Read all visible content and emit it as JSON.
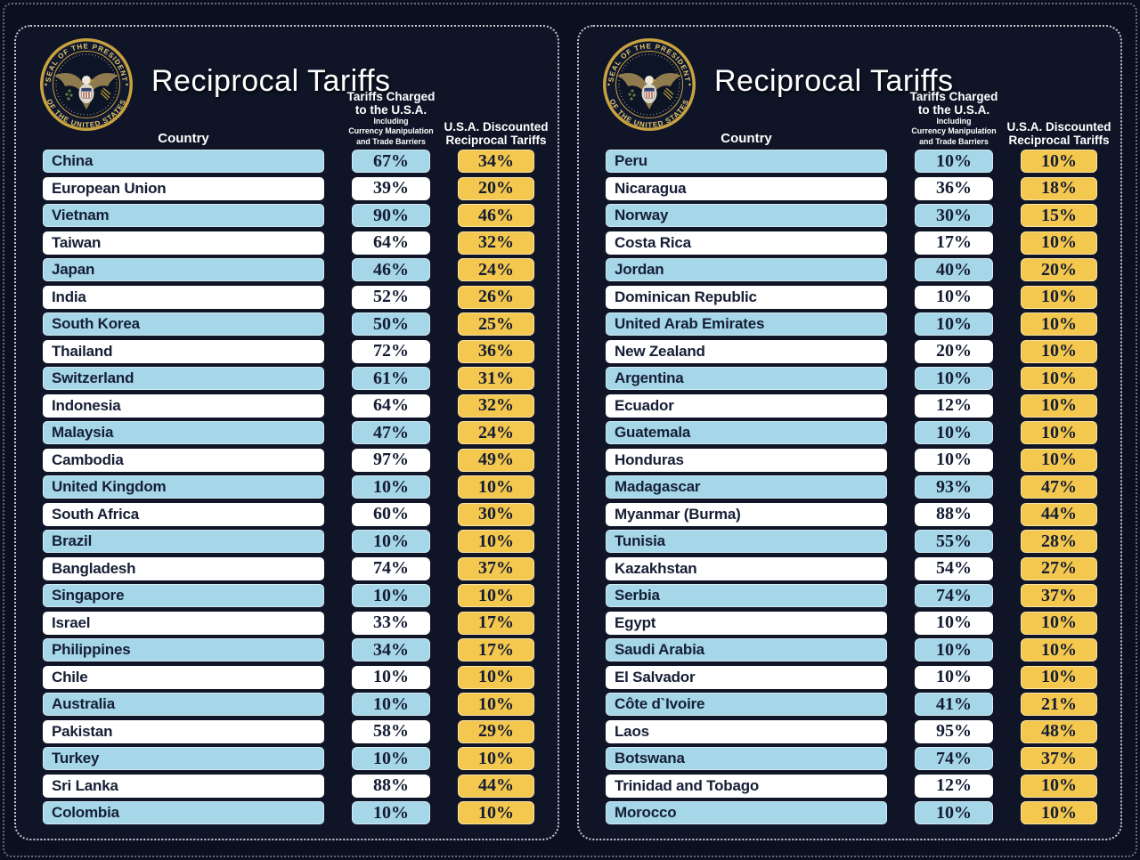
{
  "colors": {
    "background": "#0b101f",
    "panel_background": "#0f1527",
    "row_blue": "#a6d7e8",
    "row_white": "#ffffff",
    "discount_gold": "#f4c84e",
    "cell_text": "#141c33",
    "header_text": "#ffffff",
    "seal_gold": "#c9a23f"
  },
  "seal": {
    "top_text": "SEAL OF THE PRESIDENT",
    "bottom_text": "OF THE UNITED STATES"
  },
  "panels": [
    {
      "title": "Reciprocal Tariffs",
      "columns": {
        "country": "Country",
        "charged_line1": "Tariffs Charged",
        "charged_line2": "to the U.S.A.",
        "charged_sub1": "Including",
        "charged_sub2": "Currency Manipulation",
        "charged_sub3": "and Trade Barriers",
        "discounted_line1": "U.S.A. Discounted",
        "discounted_line2": "Reciprocal Tariffs"
      },
      "rows": [
        {
          "country": "China",
          "charged": "67%",
          "discounted": "34%"
        },
        {
          "country": "European Union",
          "charged": "39%",
          "discounted": "20%"
        },
        {
          "country": "Vietnam",
          "charged": "90%",
          "discounted": "46%"
        },
        {
          "country": "Taiwan",
          "charged": "64%",
          "discounted": "32%"
        },
        {
          "country": "Japan",
          "charged": "46%",
          "discounted": "24%"
        },
        {
          "country": "India",
          "charged": "52%",
          "discounted": "26%"
        },
        {
          "country": "South Korea",
          "charged": "50%",
          "discounted": "25%"
        },
        {
          "country": "Thailand",
          "charged": "72%",
          "discounted": "36%"
        },
        {
          "country": "Switzerland",
          "charged": "61%",
          "discounted": "31%"
        },
        {
          "country": "Indonesia",
          "charged": "64%",
          "discounted": "32%"
        },
        {
          "country": "Malaysia",
          "charged": "47%",
          "discounted": "24%"
        },
        {
          "country": "Cambodia",
          "charged": "97%",
          "discounted": "49%"
        },
        {
          "country": "United Kingdom",
          "charged": "10%",
          "discounted": "10%"
        },
        {
          "country": "South Africa",
          "charged": "60%",
          "discounted": "30%"
        },
        {
          "country": "Brazil",
          "charged": "10%",
          "discounted": "10%"
        },
        {
          "country": "Bangladesh",
          "charged": "74%",
          "discounted": "37%"
        },
        {
          "country": "Singapore",
          "charged": "10%",
          "discounted": "10%"
        },
        {
          "country": "Israel",
          "charged": "33%",
          "discounted": "17%"
        },
        {
          "country": "Philippines",
          "charged": "34%",
          "discounted": "17%"
        },
        {
          "country": "Chile",
          "charged": "10%",
          "discounted": "10%"
        },
        {
          "country": "Australia",
          "charged": "10%",
          "discounted": "10%"
        },
        {
          "country": "Pakistan",
          "charged": "58%",
          "discounted": "29%"
        },
        {
          "country": "Turkey",
          "charged": "10%",
          "discounted": "10%"
        },
        {
          "country": "Sri Lanka",
          "charged": "88%",
          "discounted": "44%"
        },
        {
          "country": "Colombia",
          "charged": "10%",
          "discounted": "10%"
        }
      ]
    },
    {
      "title": "Reciprocal Tariffs",
      "columns": {
        "country": "Country",
        "charged_line1": "Tariffs Charged",
        "charged_line2": "to the U.S.A.",
        "charged_sub1": "Including",
        "charged_sub2": "Currency Manipulation",
        "charged_sub3": "and Trade Barriers",
        "discounted_line1": "U.S.A. Discounted",
        "discounted_line2": "Reciprocal Tariffs"
      },
      "rows": [
        {
          "country": "Peru",
          "charged": "10%",
          "discounted": "10%"
        },
        {
          "country": "Nicaragua",
          "charged": "36%",
          "discounted": "18%"
        },
        {
          "country": "Norway",
          "charged": "30%",
          "discounted": "15%"
        },
        {
          "country": "Costa Rica",
          "charged": "17%",
          "discounted": "10%"
        },
        {
          "country": "Jordan",
          "charged": "40%",
          "discounted": "20%"
        },
        {
          "country": "Dominican Republic",
          "charged": "10%",
          "discounted": "10%"
        },
        {
          "country": "United Arab Emirates",
          "charged": "10%",
          "discounted": "10%"
        },
        {
          "country": "New Zealand",
          "charged": "20%",
          "discounted": "10%"
        },
        {
          "country": "Argentina",
          "charged": "10%",
          "discounted": "10%"
        },
        {
          "country": "Ecuador",
          "charged": "12%",
          "discounted": "10%"
        },
        {
          "country": "Guatemala",
          "charged": "10%",
          "discounted": "10%"
        },
        {
          "country": "Honduras",
          "charged": "10%",
          "discounted": "10%"
        },
        {
          "country": "Madagascar",
          "charged": "93%",
          "discounted": "47%"
        },
        {
          "country": "Myanmar (Burma)",
          "charged": "88%",
          "discounted": "44%"
        },
        {
          "country": "Tunisia",
          "charged": "55%",
          "discounted": "28%"
        },
        {
          "country": "Kazakhstan",
          "charged": "54%",
          "discounted": "27%"
        },
        {
          "country": "Serbia",
          "charged": "74%",
          "discounted": "37%"
        },
        {
          "country": "Egypt",
          "charged": "10%",
          "discounted": "10%"
        },
        {
          "country": "Saudi Arabia",
          "charged": "10%",
          "discounted": "10%"
        },
        {
          "country": "El Salvador",
          "charged": "10%",
          "discounted": "10%"
        },
        {
          "country": "Côte d`Ivoire",
          "charged": "41%",
          "discounted": "21%"
        },
        {
          "country": "Laos",
          "charged": "95%",
          "discounted": "48%"
        },
        {
          "country": "Botswana",
          "charged": "74%",
          "discounted": "37%"
        },
        {
          "country": "Trinidad and Tobago",
          "charged": "12%",
          "discounted": "10%"
        },
        {
          "country": "Morocco",
          "charged": "10%",
          "discounted": "10%"
        }
      ]
    }
  ],
  "chart_data": [
    {
      "type": "table",
      "title": "Reciprocal Tariffs",
      "columns": [
        "Country",
        "Tariffs Charged to the U.S.A. Including Currency Manipulation and Trade Barriers",
        "U.S.A. Discounted Reciprocal Tariffs"
      ],
      "rows": [
        [
          "China",
          "67%",
          "34%"
        ],
        [
          "European Union",
          "39%",
          "20%"
        ],
        [
          "Vietnam",
          "90%",
          "46%"
        ],
        [
          "Taiwan",
          "64%",
          "32%"
        ],
        [
          "Japan",
          "46%",
          "24%"
        ],
        [
          "India",
          "52%",
          "26%"
        ],
        [
          "South Korea",
          "50%",
          "25%"
        ],
        [
          "Thailand",
          "72%",
          "36%"
        ],
        [
          "Switzerland",
          "61%",
          "31%"
        ],
        [
          "Indonesia",
          "64%",
          "32%"
        ],
        [
          "Malaysia",
          "47%",
          "24%"
        ],
        [
          "Cambodia",
          "97%",
          "49%"
        ],
        [
          "United Kingdom",
          "10%",
          "10%"
        ],
        [
          "South Africa",
          "60%",
          "30%"
        ],
        [
          "Brazil",
          "10%",
          "10%"
        ],
        [
          "Bangladesh",
          "74%",
          "37%"
        ],
        [
          "Singapore",
          "10%",
          "10%"
        ],
        [
          "Israel",
          "33%",
          "17%"
        ],
        [
          "Philippines",
          "34%",
          "17%"
        ],
        [
          "Chile",
          "10%",
          "10%"
        ],
        [
          "Australia",
          "10%",
          "10%"
        ],
        [
          "Pakistan",
          "58%",
          "29%"
        ],
        [
          "Turkey",
          "10%",
          "10%"
        ],
        [
          "Sri Lanka",
          "88%",
          "44%"
        ],
        [
          "Colombia",
          "10%",
          "10%"
        ]
      ]
    },
    {
      "type": "table",
      "title": "Reciprocal Tariffs",
      "columns": [
        "Country",
        "Tariffs Charged to the U.S.A. Including Currency Manipulation and Trade Barriers",
        "U.S.A. Discounted Reciprocal Tariffs"
      ],
      "rows": [
        [
          "Peru",
          "10%",
          "10%"
        ],
        [
          "Nicaragua",
          "36%",
          "18%"
        ],
        [
          "Norway",
          "30%",
          "15%"
        ],
        [
          "Costa Rica",
          "17%",
          "10%"
        ],
        [
          "Jordan",
          "40%",
          "20%"
        ],
        [
          "Dominican Republic",
          "10%",
          "10%"
        ],
        [
          "United Arab Emirates",
          "10%",
          "10%"
        ],
        [
          "New Zealand",
          "20%",
          "10%"
        ],
        [
          "Argentina",
          "10%",
          "10%"
        ],
        [
          "Ecuador",
          "12%",
          "10%"
        ],
        [
          "Guatemala",
          "10%",
          "10%"
        ],
        [
          "Honduras",
          "10%",
          "10%"
        ],
        [
          "Madagascar",
          "93%",
          "47%"
        ],
        [
          "Myanmar (Burma)",
          "88%",
          "44%"
        ],
        [
          "Tunisia",
          "55%",
          "28%"
        ],
        [
          "Kazakhstan",
          "54%",
          "27%"
        ],
        [
          "Serbia",
          "74%",
          "37%"
        ],
        [
          "Egypt",
          "10%",
          "10%"
        ],
        [
          "Saudi Arabia",
          "10%",
          "10%"
        ],
        [
          "El Salvador",
          "10%",
          "10%"
        ],
        [
          "Côte d`Ivoire",
          "41%",
          "21%"
        ],
        [
          "Laos",
          "95%",
          "48%"
        ],
        [
          "Botswana",
          "74%",
          "37%"
        ],
        [
          "Trinidad and Tobago",
          "12%",
          "10%"
        ],
        [
          "Morocco",
          "10%",
          "10%"
        ]
      ]
    }
  ]
}
